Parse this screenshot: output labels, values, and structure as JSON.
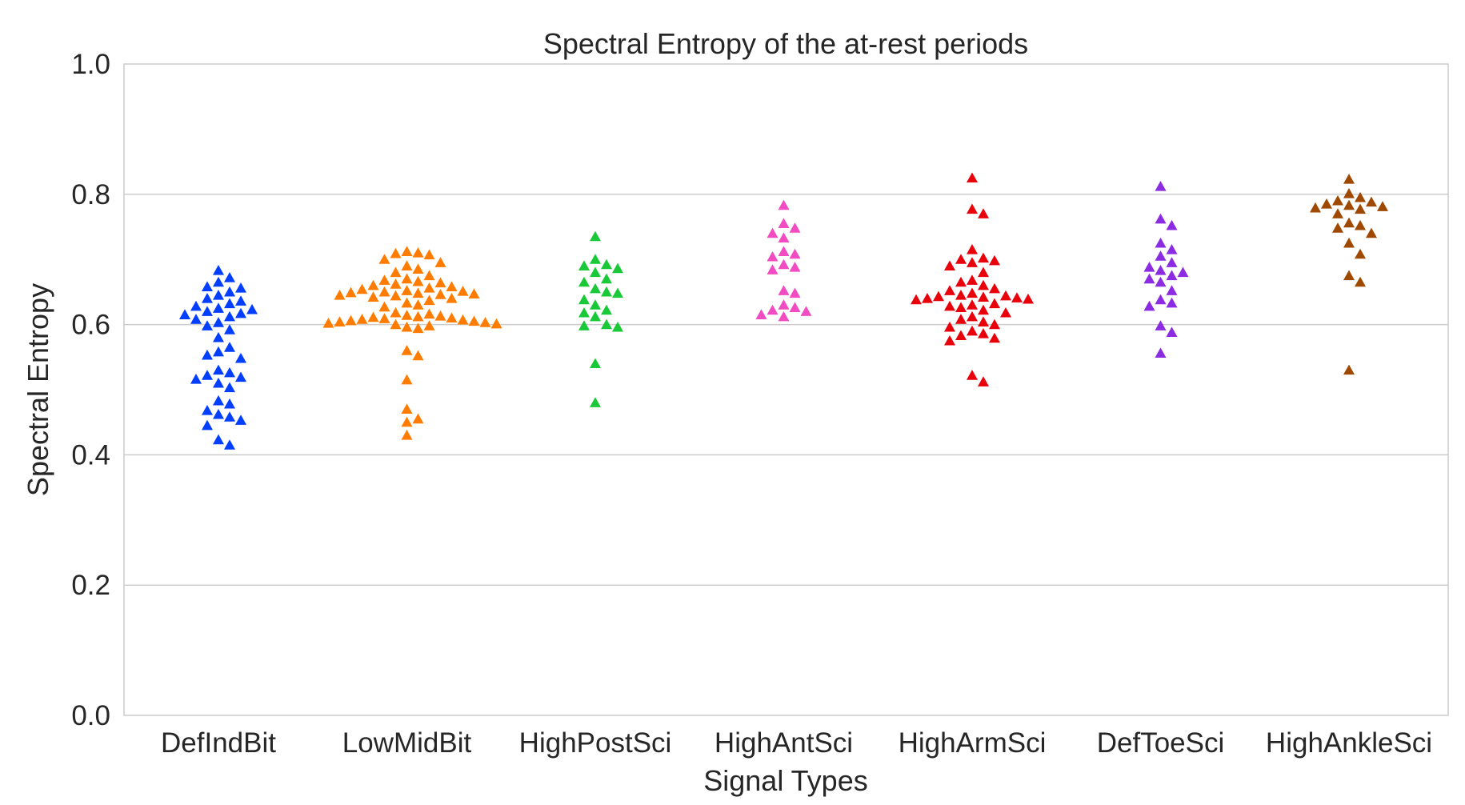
{
  "chart_data": {
    "type": "scatter",
    "style": "swarm",
    "marker": "triangle",
    "title": "Spectral Entropy of the at-rest periods",
    "xlabel": "Signal Types",
    "ylabel": "Spectral Entropy",
    "ylim": [
      0.0,
      1.0
    ],
    "yticks": [
      0.0,
      0.2,
      0.4,
      0.6,
      0.8,
      1.0
    ],
    "ytick_labels": [
      "0.0",
      "0.2",
      "0.4",
      "0.6",
      "0.8",
      "1.0"
    ],
    "grid": true,
    "categories": [
      "DefIndBit",
      "LowMidBit",
      "HighPostSci",
      "HighAntSci",
      "HighArmSci",
      "DefToeSci",
      "HighAnkleSci"
    ],
    "colors": [
      "#023eff",
      "#ff7c00",
      "#1ac938",
      "#f14cc1",
      "#e8000b",
      "#8b2be2",
      "#9f4800"
    ],
    "series": [
      {
        "name": "DefIndBit",
        "values": [
          0.683,
          0.672,
          0.665,
          0.658,
          0.656,
          0.65,
          0.645,
          0.64,
          0.636,
          0.632,
          0.628,
          0.625,
          0.623,
          0.62,
          0.617,
          0.615,
          0.612,
          0.608,
          0.603,
          0.598,
          0.592,
          0.58,
          0.565,
          0.558,
          0.553,
          0.548,
          0.53,
          0.526,
          0.522,
          0.519,
          0.516,
          0.51,
          0.503,
          0.483,
          0.478,
          0.468,
          0.462,
          0.458,
          0.453,
          0.445,
          0.423,
          0.415
        ]
      },
      {
        "name": "LowMidBit",
        "values": [
          0.712,
          0.71,
          0.709,
          0.707,
          0.7,
          0.695,
          0.69,
          0.685,
          0.68,
          0.675,
          0.67,
          0.668,
          0.666,
          0.664,
          0.662,
          0.66,
          0.658,
          0.656,
          0.654,
          0.652,
          0.651,
          0.65,
          0.649,
          0.648,
          0.647,
          0.646,
          0.645,
          0.644,
          0.642,
          0.64,
          0.637,
          0.633,
          0.63,
          0.627,
          0.618,
          0.616,
          0.614,
          0.613,
          0.612,
          0.611,
          0.61,
          0.609,
          0.608,
          0.607,
          0.606,
          0.605,
          0.604,
          0.603,
          0.602,
          0.601,
          0.6,
          0.598,
          0.596,
          0.594,
          0.56,
          0.552,
          0.515,
          0.47,
          0.455,
          0.45,
          0.43
        ]
      },
      {
        "name": "HighPostSci",
        "values": [
          0.735,
          0.7,
          0.692,
          0.69,
          0.686,
          0.68,
          0.67,
          0.665,
          0.655,
          0.65,
          0.648,
          0.638,
          0.63,
          0.622,
          0.618,
          0.612,
          0.6,
          0.598,
          0.596,
          0.54,
          0.48
        ]
      },
      {
        "name": "HighAntSci",
        "values": [
          0.783,
          0.755,
          0.748,
          0.74,
          0.733,
          0.712,
          0.708,
          0.704,
          0.692,
          0.688,
          0.684,
          0.652,
          0.648,
          0.63,
          0.626,
          0.622,
          0.62,
          0.615,
          0.612
        ]
      },
      {
        "name": "HighArmSci",
        "values": [
          0.825,
          0.777,
          0.77,
          0.715,
          0.702,
          0.7,
          0.698,
          0.695,
          0.69,
          0.68,
          0.668,
          0.665,
          0.66,
          0.655,
          0.652,
          0.648,
          0.645,
          0.644,
          0.643,
          0.642,
          0.641,
          0.64,
          0.639,
          0.638,
          0.632,
          0.63,
          0.628,
          0.626,
          0.622,
          0.618,
          0.612,
          0.608,
          0.604,
          0.6,
          0.596,
          0.59,
          0.586,
          0.583,
          0.579,
          0.575,
          0.522,
          0.512
        ]
      },
      {
        "name": "DefToeSci",
        "values": [
          0.812,
          0.762,
          0.752,
          0.725,
          0.715,
          0.705,
          0.695,
          0.688,
          0.683,
          0.68,
          0.675,
          0.67,
          0.665,
          0.652,
          0.638,
          0.633,
          0.628,
          0.598,
          0.588,
          0.556
        ]
      },
      {
        "name": "HighAnkleSci",
        "values": [
          0.823,
          0.801,
          0.795,
          0.79,
          0.788,
          0.785,
          0.783,
          0.781,
          0.779,
          0.777,
          0.77,
          0.756,
          0.752,
          0.748,
          0.74,
          0.725,
          0.708,
          0.675,
          0.665,
          0.53
        ]
      }
    ]
  }
}
